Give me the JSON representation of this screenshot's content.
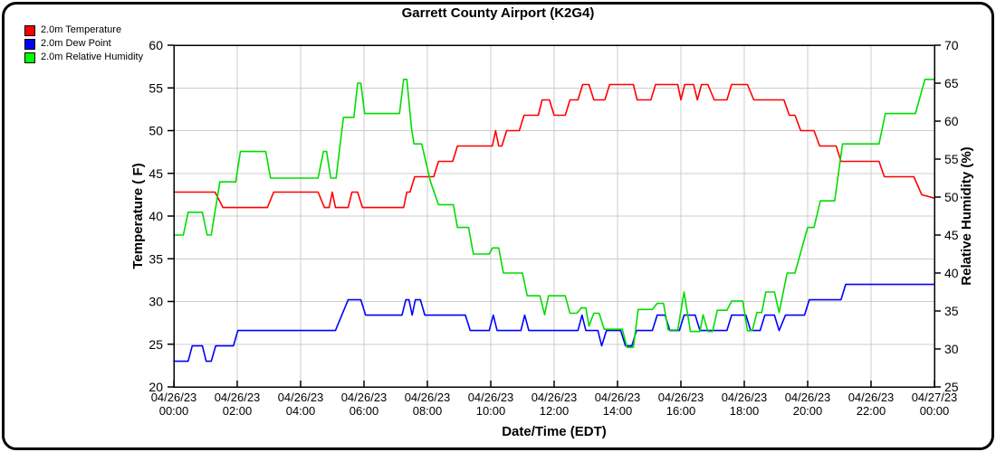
{
  "title": "Garrett County Airport (K2G4)",
  "legend": [
    {
      "label": "2.0m Temperature",
      "color": "#ff0000"
    },
    {
      "label": "2.0m Dew Point",
      "color": "#0000ff"
    },
    {
      "label": "2.0m Relative Humidity",
      "color": "#00ff00"
    }
  ],
  "chart_data": {
    "type": "line",
    "title": "Garrett County Airport (K2G4)",
    "xlabel": "Date/Time (EDT)",
    "ylabel_left": "Temperature ( F)",
    "ylabel_right": "Relative Humidity (%)",
    "left_axis": {
      "min": 20,
      "max": 60,
      "step": 5,
      "applies_to": "Temperature and Dew Point (F)"
    },
    "right_axis": {
      "min": 25,
      "max": 70,
      "step": 5,
      "applies_to": "Relative Humidity (%)"
    },
    "grid": "on",
    "grid_color": "#cccccc",
    "legend_position": "top-left",
    "x_range_hours": [
      0,
      24
    ],
    "x_ticks": [
      {
        "hour": 0,
        "date": "04/26/23",
        "time": "00:00"
      },
      {
        "hour": 2,
        "date": "04/26/23",
        "time": "02:00"
      },
      {
        "hour": 4,
        "date": "04/26/23",
        "time": "04:00"
      },
      {
        "hour": 6,
        "date": "04/26/23",
        "time": "06:00"
      },
      {
        "hour": 8,
        "date": "04/26/23",
        "time": "08:00"
      },
      {
        "hour": 10,
        "date": "04/26/23",
        "time": "10:00"
      },
      {
        "hour": 12,
        "date": "04/26/23",
        "time": "12:00"
      },
      {
        "hour": 14,
        "date": "04/26/23",
        "time": "14:00"
      },
      {
        "hour": 16,
        "date": "04/26/23",
        "time": "16:00"
      },
      {
        "hour": 18,
        "date": "04/26/23",
        "time": "18:00"
      },
      {
        "hour": 20,
        "date": "04/26/23",
        "time": "20:00"
      },
      {
        "hour": 22,
        "date": "04/26/23",
        "time": "22:00"
      },
      {
        "hour": 24,
        "date": "04/27/23",
        "time": "00:00"
      }
    ],
    "series": [
      {
        "name": "2.0m Temperature",
        "axis": "left",
        "unit": "F",
        "color": "#ff0000",
        "points": [
          [
            0,
            42.8
          ],
          [
            1.3,
            42.8
          ],
          [
            1.55,
            41
          ],
          [
            2.95,
            41
          ],
          [
            3.15,
            42.8
          ],
          [
            4.55,
            42.8
          ],
          [
            4.75,
            41
          ],
          [
            4.9,
            41
          ],
          [
            5.0,
            42.8
          ],
          [
            5.1,
            41
          ],
          [
            5.5,
            41
          ],
          [
            5.62,
            42.8
          ],
          [
            5.8,
            42.8
          ],
          [
            5.95,
            41
          ],
          [
            7.25,
            41
          ],
          [
            7.35,
            42.8
          ],
          [
            7.45,
            42.8
          ],
          [
            7.6,
            44.6
          ],
          [
            8.2,
            44.6
          ],
          [
            8.35,
            46.4
          ],
          [
            8.8,
            46.4
          ],
          [
            8.95,
            48.2
          ],
          [
            10.05,
            48.2
          ],
          [
            10.15,
            50
          ],
          [
            10.25,
            48.2
          ],
          [
            10.35,
            48.2
          ],
          [
            10.5,
            50
          ],
          [
            10.9,
            50
          ],
          [
            11.05,
            51.8
          ],
          [
            11.5,
            51.8
          ],
          [
            11.62,
            53.6
          ],
          [
            11.85,
            53.6
          ],
          [
            12.0,
            51.8
          ],
          [
            12.35,
            51.8
          ],
          [
            12.5,
            53.6
          ],
          [
            12.75,
            53.6
          ],
          [
            12.9,
            55.4
          ],
          [
            13.1,
            55.4
          ],
          [
            13.25,
            53.6
          ],
          [
            13.6,
            53.6
          ],
          [
            13.75,
            55.4
          ],
          [
            14.5,
            55.4
          ],
          [
            14.62,
            53.6
          ],
          [
            15.05,
            53.6
          ],
          [
            15.2,
            55.4
          ],
          [
            15.9,
            55.4
          ],
          [
            16.0,
            53.6
          ],
          [
            16.12,
            55.4
          ],
          [
            16.4,
            55.4
          ],
          [
            16.52,
            53.6
          ],
          [
            16.65,
            55.4
          ],
          [
            16.85,
            55.4
          ],
          [
            17.05,
            53.6
          ],
          [
            17.45,
            53.6
          ],
          [
            17.6,
            55.4
          ],
          [
            18.1,
            55.4
          ],
          [
            18.3,
            53.6
          ],
          [
            19.25,
            53.6
          ],
          [
            19.42,
            51.8
          ],
          [
            19.6,
            51.8
          ],
          [
            19.78,
            50
          ],
          [
            20.2,
            50
          ],
          [
            20.38,
            48.2
          ],
          [
            20.9,
            48.2
          ],
          [
            21.05,
            46.4
          ],
          [
            22.25,
            46.4
          ],
          [
            22.42,
            44.6
          ],
          [
            23.35,
            44.6
          ],
          [
            23.6,
            42.5
          ],
          [
            24,
            42.1
          ]
        ]
      },
      {
        "name": "2.0m Dew Point",
        "axis": "left",
        "unit": "F",
        "color": "#0000ff",
        "points": [
          [
            0,
            23
          ],
          [
            0.45,
            23
          ],
          [
            0.58,
            24.8
          ],
          [
            0.9,
            24.8
          ],
          [
            1.02,
            23
          ],
          [
            1.18,
            23
          ],
          [
            1.32,
            24.8
          ],
          [
            1.88,
            24.8
          ],
          [
            2.02,
            26.6
          ],
          [
            5.1,
            26.6
          ],
          [
            5.3,
            28.4
          ],
          [
            5.5,
            30.2
          ],
          [
            5.9,
            30.2
          ],
          [
            6.05,
            28.4
          ],
          [
            7.2,
            28.4
          ],
          [
            7.32,
            30.2
          ],
          [
            7.42,
            30.2
          ],
          [
            7.52,
            28.4
          ],
          [
            7.62,
            30.2
          ],
          [
            7.78,
            30.2
          ],
          [
            7.92,
            28.4
          ],
          [
            9.2,
            28.4
          ],
          [
            9.35,
            26.6
          ],
          [
            9.95,
            26.6
          ],
          [
            10.08,
            28.4
          ],
          [
            10.2,
            26.6
          ],
          [
            10.95,
            26.6
          ],
          [
            11.07,
            28.4
          ],
          [
            11.2,
            26.6
          ],
          [
            12.75,
            26.6
          ],
          [
            12.88,
            28.4
          ],
          [
            13.0,
            26.6
          ],
          [
            13.38,
            26.6
          ],
          [
            13.5,
            24.8
          ],
          [
            13.65,
            26.6
          ],
          [
            14.1,
            26.6
          ],
          [
            14.25,
            24.8
          ],
          [
            14.45,
            24.8
          ],
          [
            14.6,
            26.6
          ],
          [
            15.1,
            26.6
          ],
          [
            15.25,
            28.4
          ],
          [
            15.5,
            28.4
          ],
          [
            15.65,
            26.6
          ],
          [
            15.95,
            26.6
          ],
          [
            16.1,
            28.4
          ],
          [
            16.45,
            28.4
          ],
          [
            16.6,
            26.6
          ],
          [
            17.45,
            26.6
          ],
          [
            17.6,
            28.4
          ],
          [
            18.05,
            28.4
          ],
          [
            18.2,
            26.6
          ],
          [
            18.5,
            26.6
          ],
          [
            18.65,
            28.4
          ],
          [
            18.95,
            28.4
          ],
          [
            19.1,
            26.6
          ],
          [
            19.3,
            28.4
          ],
          [
            19.9,
            28.4
          ],
          [
            20.05,
            30.2
          ],
          [
            21.05,
            30.2
          ],
          [
            21.2,
            32
          ],
          [
            24,
            32
          ]
        ]
      },
      {
        "name": "2.0m Relative Humidity",
        "axis": "right",
        "unit": "%",
        "color": "#00dd00",
        "points": [
          [
            0,
            45
          ],
          [
            0.3,
            45
          ],
          [
            0.45,
            48
          ],
          [
            0.9,
            48
          ],
          [
            1.05,
            45
          ],
          [
            1.18,
            45
          ],
          [
            1.45,
            52
          ],
          [
            1.95,
            52
          ],
          [
            2.1,
            56
          ],
          [
            2.9,
            56
          ],
          [
            3.05,
            52.5
          ],
          [
            4.55,
            52.5
          ],
          [
            4.72,
            56
          ],
          [
            4.82,
            56
          ],
          [
            4.95,
            52.5
          ],
          [
            5.12,
            52.5
          ],
          [
            5.35,
            60.5
          ],
          [
            5.68,
            60.5
          ],
          [
            5.8,
            65
          ],
          [
            5.9,
            65
          ],
          [
            6.02,
            61
          ],
          [
            7.12,
            61
          ],
          [
            7.25,
            65.5
          ],
          [
            7.35,
            65.5
          ],
          [
            7.5,
            59
          ],
          [
            7.58,
            57
          ],
          [
            7.82,
            57
          ],
          [
            8.1,
            52
          ],
          [
            8.35,
            49
          ],
          [
            8.82,
            49
          ],
          [
            8.95,
            46
          ],
          [
            9.3,
            46
          ],
          [
            9.45,
            42.5
          ],
          [
            9.95,
            42.5
          ],
          [
            10.05,
            43.3
          ],
          [
            10.25,
            43.3
          ],
          [
            10.4,
            40
          ],
          [
            11.0,
            40
          ],
          [
            11.15,
            37
          ],
          [
            11.55,
            37
          ],
          [
            11.7,
            34.5
          ],
          [
            11.82,
            37
          ],
          [
            12.35,
            37
          ],
          [
            12.5,
            34.7
          ],
          [
            12.72,
            34.7
          ],
          [
            12.85,
            35.4
          ],
          [
            13.0,
            35.4
          ],
          [
            13.1,
            33
          ],
          [
            13.25,
            34.7
          ],
          [
            13.42,
            34.7
          ],
          [
            13.58,
            32.6
          ],
          [
            14.15,
            32.6
          ],
          [
            14.3,
            30.2
          ],
          [
            14.5,
            30.2
          ],
          [
            14.65,
            35.2
          ],
          [
            15.1,
            35.2
          ],
          [
            15.25,
            36
          ],
          [
            15.45,
            36
          ],
          [
            15.6,
            32.5
          ],
          [
            15.9,
            32.5
          ],
          [
            16.1,
            37.5
          ],
          [
            16.3,
            32.3
          ],
          [
            16.6,
            32.3
          ],
          [
            16.7,
            34.5
          ],
          [
            16.85,
            32.3
          ],
          [
            17.0,
            32.3
          ],
          [
            17.15,
            35.1
          ],
          [
            17.45,
            35.1
          ],
          [
            17.6,
            36.3
          ],
          [
            17.95,
            36.3
          ],
          [
            18.1,
            32.4
          ],
          [
            18.25,
            32.4
          ],
          [
            18.4,
            34.8
          ],
          [
            18.55,
            34.8
          ],
          [
            18.68,
            37.5
          ],
          [
            18.95,
            37.5
          ],
          [
            19.1,
            34.8
          ],
          [
            19.35,
            40
          ],
          [
            19.6,
            40
          ],
          [
            20.0,
            46
          ],
          [
            20.2,
            46
          ],
          [
            20.4,
            49.5
          ],
          [
            20.85,
            49.5
          ],
          [
            21.1,
            57
          ],
          [
            22.25,
            57
          ],
          [
            22.45,
            61
          ],
          [
            23.4,
            61
          ],
          [
            23.7,
            65.5
          ],
          [
            24,
            65.5
          ]
        ]
      }
    ]
  }
}
